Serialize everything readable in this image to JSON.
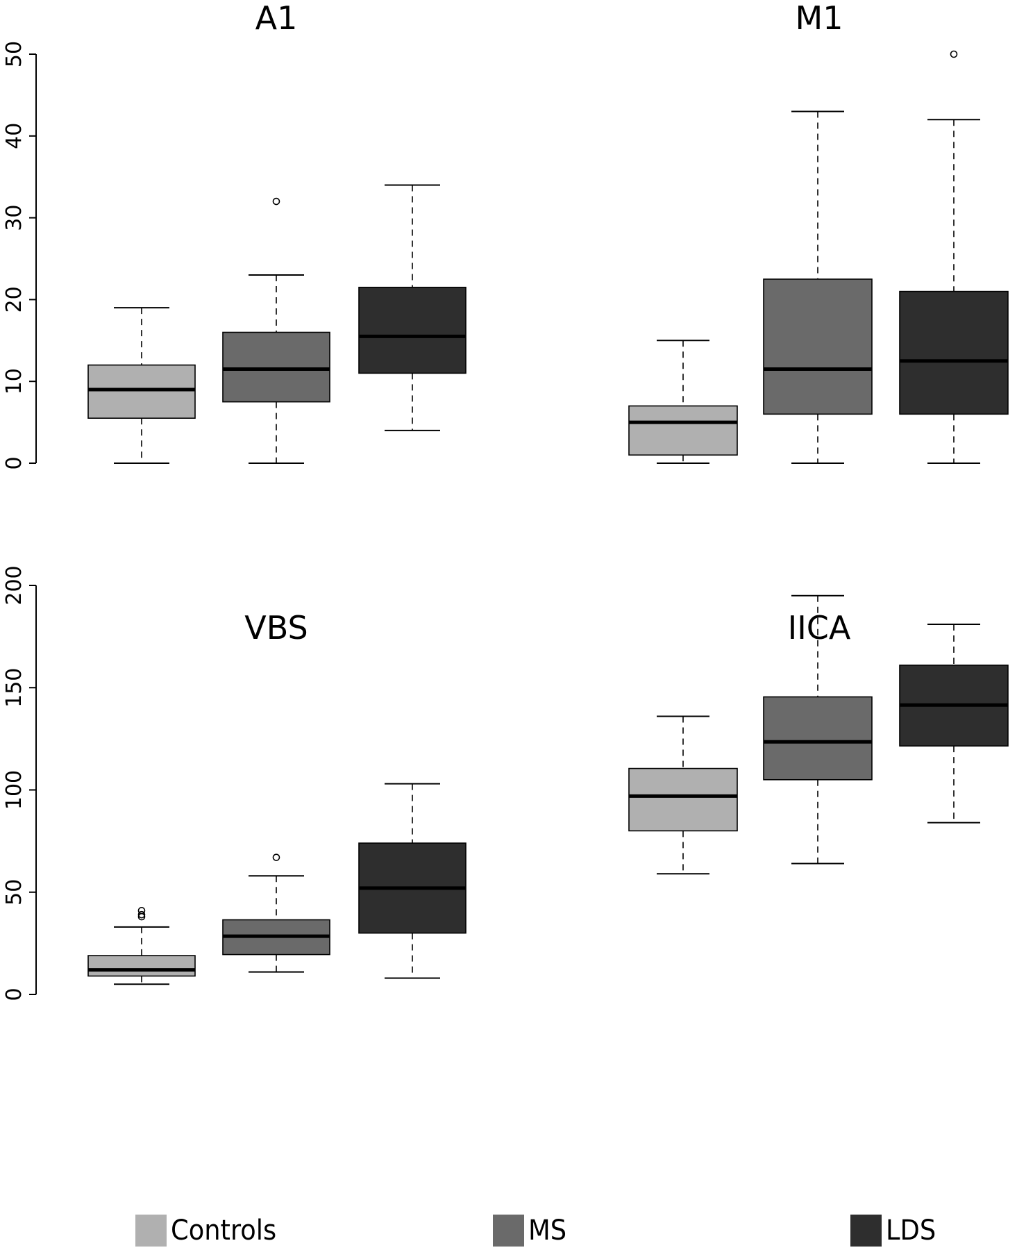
{
  "legend": [
    {
      "label": "Controls",
      "color": "#b0b0b0"
    },
    {
      "label": "MS",
      "color": "#6a6a6a"
    },
    {
      "label": "LDS",
      "color": "#2e2e2e"
    }
  ],
  "chart_data": [
    {
      "type": "box",
      "title": "A1",
      "xlabel": "",
      "ylabel": "",
      "ylim": [
        0,
        50
      ],
      "yticks": [
        0,
        10,
        20,
        30,
        40,
        50
      ],
      "grid": false,
      "categories": [
        "Controls",
        "MS",
        "LDS"
      ],
      "series": [
        {
          "name": "Controls",
          "whisker_low": 0,
          "q1": 5.5,
          "median": 9,
          "q3": 12,
          "whisker_high": 19,
          "outliers": []
        },
        {
          "name": "MS",
          "whisker_low": 0,
          "q1": 7.5,
          "median": 11.5,
          "q3": 16,
          "whisker_high": 23,
          "outliers": [
            32
          ]
        },
        {
          "name": "LDS",
          "whisker_low": 4,
          "q1": 11,
          "median": 15.5,
          "q3": 21.5,
          "whisker_high": 34,
          "outliers": []
        }
      ]
    },
    {
      "type": "box",
      "title": "M1",
      "xlabel": "",
      "ylabel": "",
      "ylim": [
        0,
        50
      ],
      "yticks": [],
      "grid": false,
      "categories": [
        "Controls",
        "MS",
        "LDS"
      ],
      "series": [
        {
          "name": "Controls",
          "whisker_low": 0,
          "q1": 1,
          "median": 5,
          "q3": 7,
          "whisker_high": 15,
          "outliers": []
        },
        {
          "name": "MS",
          "whisker_low": 0,
          "q1": 6,
          "median": 11.5,
          "q3": 22.5,
          "whisker_high": 43,
          "outliers": []
        },
        {
          "name": "LDS",
          "whisker_low": 0,
          "q1": 6,
          "median": 12.5,
          "q3": 21,
          "whisker_high": 42,
          "outliers": [
            50
          ]
        }
      ]
    },
    {
      "type": "box",
      "title": "VBS",
      "xlabel": "",
      "ylabel": "",
      "ylim": [
        0,
        200
      ],
      "yticks": [
        0,
        50,
        100,
        150,
        200
      ],
      "grid": false,
      "categories": [
        "Controls",
        "MS",
        "LDS"
      ],
      "series": [
        {
          "name": "Controls",
          "whisker_low": 5,
          "q1": 9,
          "median": 12,
          "q3": 19,
          "whisker_high": 33,
          "outliers": [
            38,
            39,
            41
          ]
        },
        {
          "name": "MS",
          "whisker_low": 11,
          "q1": 19.5,
          "median": 28.5,
          "q3": 36.5,
          "whisker_high": 58,
          "outliers": [
            67
          ]
        },
        {
          "name": "LDS",
          "whisker_low": 8,
          "q1": 30,
          "median": 52,
          "q3": 74,
          "whisker_high": 103,
          "outliers": []
        }
      ]
    },
    {
      "type": "box",
      "title": "IICA",
      "xlabel": "",
      "ylabel": "",
      "ylim": [
        0,
        200
      ],
      "yticks": [],
      "grid": false,
      "categories": [
        "Controls",
        "MS",
        "LDS"
      ],
      "series": [
        {
          "name": "Controls",
          "whisker_low": 59,
          "q1": 80,
          "median": 97,
          "q3": 110.5,
          "whisker_high": 136,
          "outliers": []
        },
        {
          "name": "MS",
          "whisker_low": 64,
          "q1": 105,
          "median": 123.5,
          "q3": 145.5,
          "whisker_high": 195,
          "outliers": []
        },
        {
          "name": "LDS",
          "whisker_low": 84,
          "q1": 121.5,
          "median": 141.5,
          "q3": 161,
          "whisker_high": 181,
          "outliers": []
        }
      ]
    }
  ]
}
